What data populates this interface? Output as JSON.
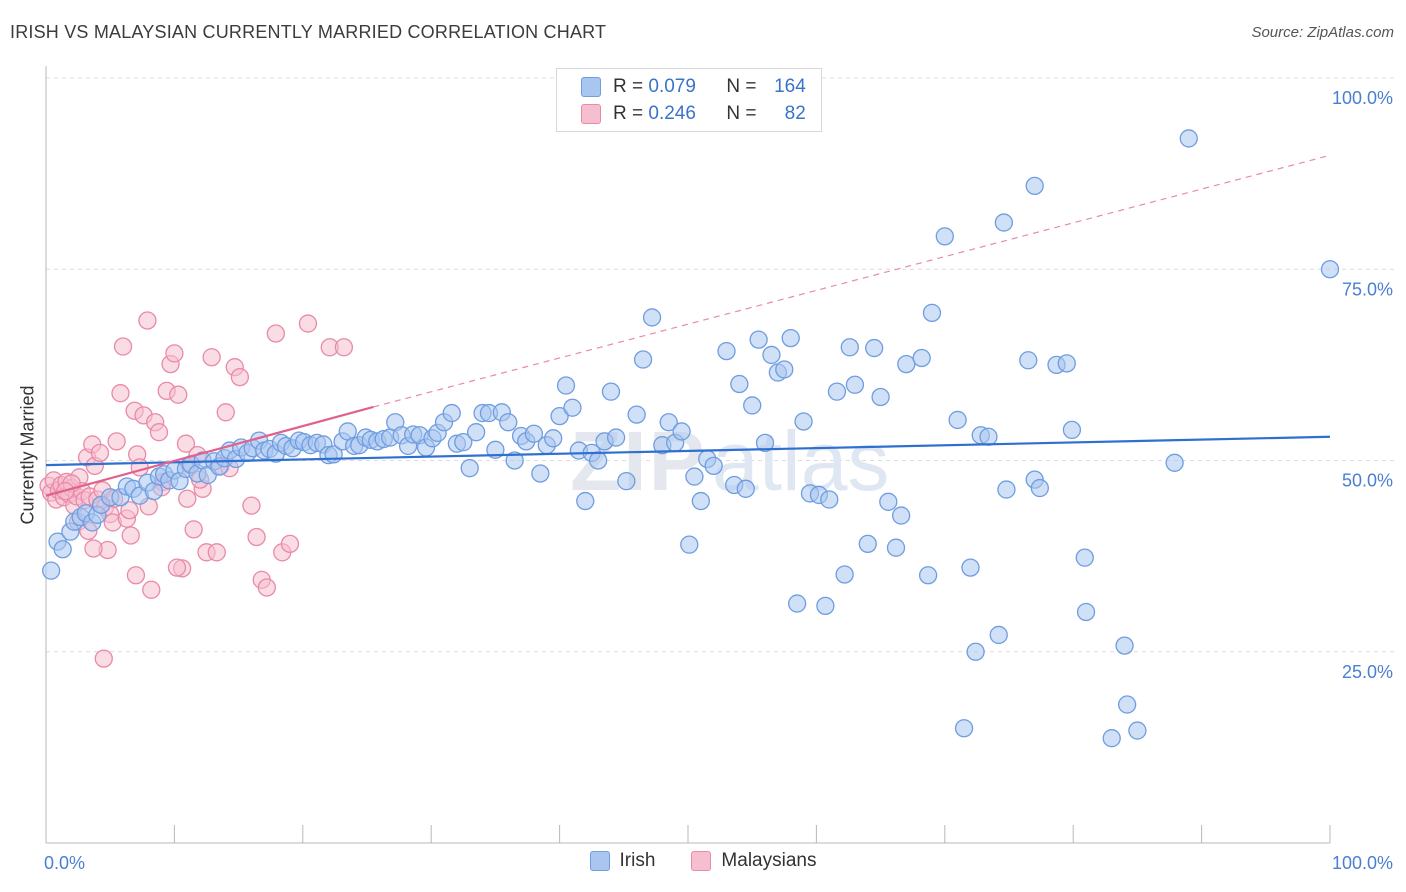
{
  "header": {
    "title": "IRISH VS MALAYSIAN CURRENTLY MARRIED CORRELATION CHART",
    "source": "Source: ZipAtlas.com"
  },
  "legend": {
    "r_label": "R =",
    "n_label": "N =",
    "rows": [
      {
        "r": "0.079",
        "n": "164",
        "color": "#a9c6f0",
        "border": "#6f9de0"
      },
      {
        "r": "0.246",
        "n": "82",
        "color": "#f6bfd0",
        "border": "#e98aa8"
      }
    ]
  },
  "chart_data": {
    "type": "scatter",
    "title": "IRISH VS MALAYSIAN CURRENTLY MARRIED CORRELATION CHART",
    "xlabel": "",
    "ylabel": "Currently Married",
    "xlim": [
      0,
      100
    ],
    "ylim": [
      0,
      100
    ],
    "x_tick_labels": [
      "0.0%",
      "100.0%"
    ],
    "y_tick_labels": [
      "25.0%",
      "50.0%",
      "75.0%",
      "100.0%"
    ],
    "y_ticks": [
      25,
      50,
      75,
      100
    ],
    "grid": "horizontal dashed",
    "legend_position": "top-center and bottom-center",
    "series": [
      {
        "name": "Irish",
        "color": "#6f9de0",
        "fill": "#a9c6f0",
        "trend": {
          "x": [
            0,
            100
          ],
          "y": [
            49.4,
            53.1
          ],
          "color": "#2f6fd0"
        },
        "points": [
          [
            0.4,
            35.6
          ],
          [
            0.9,
            39.4
          ],
          [
            1.3,
            38.4
          ],
          [
            1.9,
            40.7
          ],
          [
            2.2,
            42.0
          ],
          [
            2.7,
            42.6
          ],
          [
            3.1,
            43.1
          ],
          [
            3.6,
            41.9
          ],
          [
            4.0,
            42.9
          ],
          [
            4.3,
            44.2
          ],
          [
            5.0,
            45.2
          ],
          [
            5.8,
            45.2
          ],
          [
            6.3,
            46.6
          ],
          [
            6.8,
            46.3
          ],
          [
            7.3,
            45.4
          ],
          [
            7.9,
            47.1
          ],
          [
            8.4,
            46.0
          ],
          [
            8.8,
            47.9
          ],
          [
            9.2,
            48.2
          ],
          [
            9.6,
            47.4
          ],
          [
            10.0,
            48.7
          ],
          [
            10.4,
            47.3
          ],
          [
            10.9,
            48.9
          ],
          [
            11.3,
            49.5
          ],
          [
            11.8,
            48.3
          ],
          [
            12.2,
            50.0
          ],
          [
            12.6,
            48.1
          ],
          [
            13.1,
            49.9
          ],
          [
            13.5,
            49.2
          ],
          [
            13.9,
            50.3
          ],
          [
            14.3,
            51.3
          ],
          [
            14.8,
            50.2
          ],
          [
            15.2,
            51.7
          ],
          [
            15.7,
            51.0
          ],
          [
            16.1,
            51.6
          ],
          [
            16.6,
            52.6
          ],
          [
            17.0,
            51.3
          ],
          [
            17.4,
            51.5
          ],
          [
            17.9,
            50.9
          ],
          [
            18.3,
            52.3
          ],
          [
            18.7,
            51.9
          ],
          [
            19.2,
            51.6
          ],
          [
            19.7,
            52.6
          ],
          [
            20.1,
            52.4
          ],
          [
            20.6,
            52.0
          ],
          [
            21.1,
            52.3
          ],
          [
            21.6,
            52.1
          ],
          [
            22.0,
            50.7
          ],
          [
            22.4,
            50.8
          ],
          [
            23.1,
            52.5
          ],
          [
            23.5,
            53.8
          ],
          [
            24.0,
            51.9
          ],
          [
            24.4,
            52.0
          ],
          [
            24.9,
            53.0
          ],
          [
            25.3,
            52.7
          ],
          [
            25.8,
            52.5
          ],
          [
            26.3,
            52.8
          ],
          [
            26.8,
            53.0
          ],
          [
            27.2,
            55.0
          ],
          [
            27.7,
            53.3
          ],
          [
            28.2,
            51.9
          ],
          [
            28.6,
            53.4
          ],
          [
            29.1,
            53.3
          ],
          [
            29.6,
            51.7
          ],
          [
            30.1,
            52.9
          ],
          [
            30.5,
            53.6
          ],
          [
            31.0,
            55.0
          ],
          [
            31.6,
            56.2
          ],
          [
            32.0,
            52.2
          ],
          [
            32.5,
            52.4
          ],
          [
            33.0,
            49.0
          ],
          [
            33.5,
            53.7
          ],
          [
            34.0,
            56.2
          ],
          [
            34.5,
            56.2
          ],
          [
            35.0,
            51.4
          ],
          [
            35.5,
            56.3
          ],
          [
            36.0,
            55.0
          ],
          [
            36.5,
            50.0
          ],
          [
            37.0,
            53.2
          ],
          [
            37.4,
            52.5
          ],
          [
            38.0,
            53.5
          ],
          [
            38.5,
            48.3
          ],
          [
            39.0,
            52.0
          ],
          [
            39.5,
            52.9
          ],
          [
            40.0,
            55.8
          ],
          [
            40.5,
            59.8
          ],
          [
            41.0,
            56.9
          ],
          [
            41.5,
            51.3
          ],
          [
            42.0,
            44.7
          ],
          [
            42.5,
            51.0
          ],
          [
            43.0,
            50.0
          ],
          [
            43.5,
            52.5
          ],
          [
            44.0,
            59.0
          ],
          [
            44.4,
            53.0
          ],
          [
            45.2,
            47.3
          ],
          [
            46.0,
            56.0
          ],
          [
            46.5,
            63.2
          ],
          [
            47.2,
            68.7
          ],
          [
            48.0,
            52.0
          ],
          [
            48.5,
            55.0
          ],
          [
            49.0,
            52.3
          ],
          [
            49.5,
            53.8
          ],
          [
            50.1,
            39.0
          ],
          [
            50.5,
            47.9
          ],
          [
            51.0,
            44.7
          ],
          [
            51.5,
            50.2
          ],
          [
            52.0,
            49.3
          ],
          [
            53.0,
            64.3
          ],
          [
            53.6,
            46.8
          ],
          [
            54.0,
            60.0
          ],
          [
            54.5,
            46.3
          ],
          [
            55.0,
            57.2
          ],
          [
            55.5,
            65.8
          ],
          [
            56.0,
            52.3
          ],
          [
            56.5,
            63.8
          ],
          [
            57.0,
            61.5
          ],
          [
            57.5,
            61.9
          ],
          [
            58.0,
            66.0
          ],
          [
            58.5,
            31.3
          ],
          [
            59.0,
            55.1
          ],
          [
            59.5,
            45.7
          ],
          [
            60.2,
            45.5
          ],
          [
            60.7,
            31.0
          ],
          [
            61.0,
            44.9
          ],
          [
            61.6,
            59.0
          ],
          [
            62.2,
            35.1
          ],
          [
            62.6,
            64.8
          ],
          [
            63.0,
            59.9
          ],
          [
            64.0,
            39.1
          ],
          [
            64.5,
            64.7
          ],
          [
            65.0,
            58.3
          ],
          [
            65.6,
            44.6
          ],
          [
            66.2,
            38.6
          ],
          [
            66.6,
            42.8
          ],
          [
            67.0,
            62.6
          ],
          [
            68.2,
            63.4
          ],
          [
            68.7,
            35.0
          ],
          [
            69.0,
            69.3
          ],
          [
            70.0,
            79.3
          ],
          [
            71.0,
            55.3
          ],
          [
            71.5,
            15.0
          ],
          [
            72.0,
            36.0
          ],
          [
            72.4,
            25.0
          ],
          [
            72.8,
            53.3
          ],
          [
            73.4,
            53.1
          ],
          [
            74.2,
            27.2
          ],
          [
            74.6,
            81.1
          ],
          [
            74.8,
            46.2
          ],
          [
            76.5,
            63.1
          ],
          [
            77.0,
            47.5
          ],
          [
            77.4,
            46.4
          ],
          [
            77.0,
            85.9
          ],
          [
            78.7,
            62.5
          ],
          [
            79.5,
            62.7
          ],
          [
            79.9,
            54.0
          ],
          [
            80.9,
            37.3
          ],
          [
            81.0,
            30.2
          ],
          [
            83.0,
            13.7
          ],
          [
            84.0,
            25.8
          ],
          [
            84.2,
            18.1
          ],
          [
            85.0,
            14.7
          ],
          [
            87.9,
            49.7
          ],
          [
            89.0,
            92.1
          ],
          [
            100.0,
            75.0
          ]
        ]
      },
      {
        "name": "Malaysians",
        "color": "#e98aa8",
        "fill": "#f6bfd0",
        "trend": {
          "x": [
            0,
            25.5
          ],
          "y": [
            45.4,
            57.0
          ],
          "color": "#e0628c"
        },
        "dashed_extension": {
          "x": [
            25.5,
            100
          ],
          "y": [
            57.0,
            89.9
          ]
        },
        "points": [
          [
            0.2,
            46.7
          ],
          [
            0.4,
            45.8
          ],
          [
            0.6,
            47.4
          ],
          [
            0.8,
            44.9
          ],
          [
            1.0,
            46.1
          ],
          [
            1.2,
            46.8
          ],
          [
            1.4,
            45.2
          ],
          [
            1.6,
            47.2
          ],
          [
            1.8,
            45.6
          ],
          [
            2.0,
            46.4
          ],
          [
            2.2,
            44.1
          ],
          [
            2.4,
            45.3
          ],
          [
            2.6,
            47.8
          ],
          [
            2.8,
            46.0
          ],
          [
            3.0,
            44.8
          ],
          [
            3.2,
            50.4
          ],
          [
            3.4,
            45.3
          ],
          [
            3.6,
            52.1
          ],
          [
            3.8,
            49.3
          ],
          [
            4.0,
            44.9
          ],
          [
            4.2,
            51.0
          ],
          [
            4.4,
            46.1
          ],
          [
            4.6,
            43.9
          ],
          [
            4.8,
            38.3
          ],
          [
            5.0,
            43.0
          ],
          [
            5.2,
            41.9
          ],
          [
            5.5,
            52.5
          ],
          [
            5.8,
            58.8
          ],
          [
            6.0,
            64.9
          ],
          [
            6.3,
            42.4
          ],
          [
            6.6,
            40.2
          ],
          [
            6.9,
            56.5
          ],
          [
            7.1,
            50.8
          ],
          [
            7.3,
            49.1
          ],
          [
            7.6,
            55.9
          ],
          [
            7.9,
            68.3
          ],
          [
            8.2,
            33.1
          ],
          [
            8.5,
            55.0
          ],
          [
            8.8,
            53.7
          ],
          [
            9.1,
            47.2
          ],
          [
            9.4,
            59.1
          ],
          [
            9.7,
            62.6
          ],
          [
            10.0,
            64.0
          ],
          [
            10.3,
            58.6
          ],
          [
            10.6,
            35.9
          ],
          [
            10.9,
            52.2
          ],
          [
            11.2,
            49.4
          ],
          [
            11.5,
            41.0
          ],
          [
            11.8,
            50.7
          ],
          [
            12.2,
            46.3
          ],
          [
            12.5,
            38.0
          ],
          [
            12.9,
            63.5
          ],
          [
            13.3,
            38.0
          ],
          [
            13.6,
            49.3
          ],
          [
            14.0,
            56.3
          ],
          [
            14.3,
            49.0
          ],
          [
            14.7,
            62.2
          ],
          [
            15.1,
            60.9
          ],
          [
            16.0,
            44.1
          ],
          [
            16.4,
            40.0
          ],
          [
            16.8,
            34.4
          ],
          [
            17.2,
            33.4
          ],
          [
            17.9,
            66.6
          ],
          [
            18.4,
            38.0
          ],
          [
            19.0,
            39.1
          ],
          [
            20.4,
            67.9
          ],
          [
            22.1,
            64.8
          ],
          [
            23.2,
            64.8
          ],
          [
            4.5,
            24.1
          ],
          [
            2.0,
            47.0
          ],
          [
            1.5,
            46.0
          ],
          [
            3.7,
            38.5
          ],
          [
            5.3,
            45.0
          ],
          [
            6.5,
            43.5
          ],
          [
            7.0,
            35.0
          ],
          [
            8.0,
            44.0
          ],
          [
            9.0,
            46.5
          ],
          [
            10.2,
            36.0
          ],
          [
            11.0,
            45.0
          ],
          [
            12.0,
            47.5
          ],
          [
            2.5,
            42.0
          ],
          [
            3.3,
            40.8
          ]
        ]
      }
    ]
  },
  "bottom_legend": [
    {
      "label": "Irish",
      "color": "#a9c6f0",
      "border": "#6f9de0"
    },
    {
      "label": "Malaysians",
      "color": "#f6bfd0",
      "border": "#e98aa8"
    }
  ],
  "watermark": "ZIPatlas"
}
